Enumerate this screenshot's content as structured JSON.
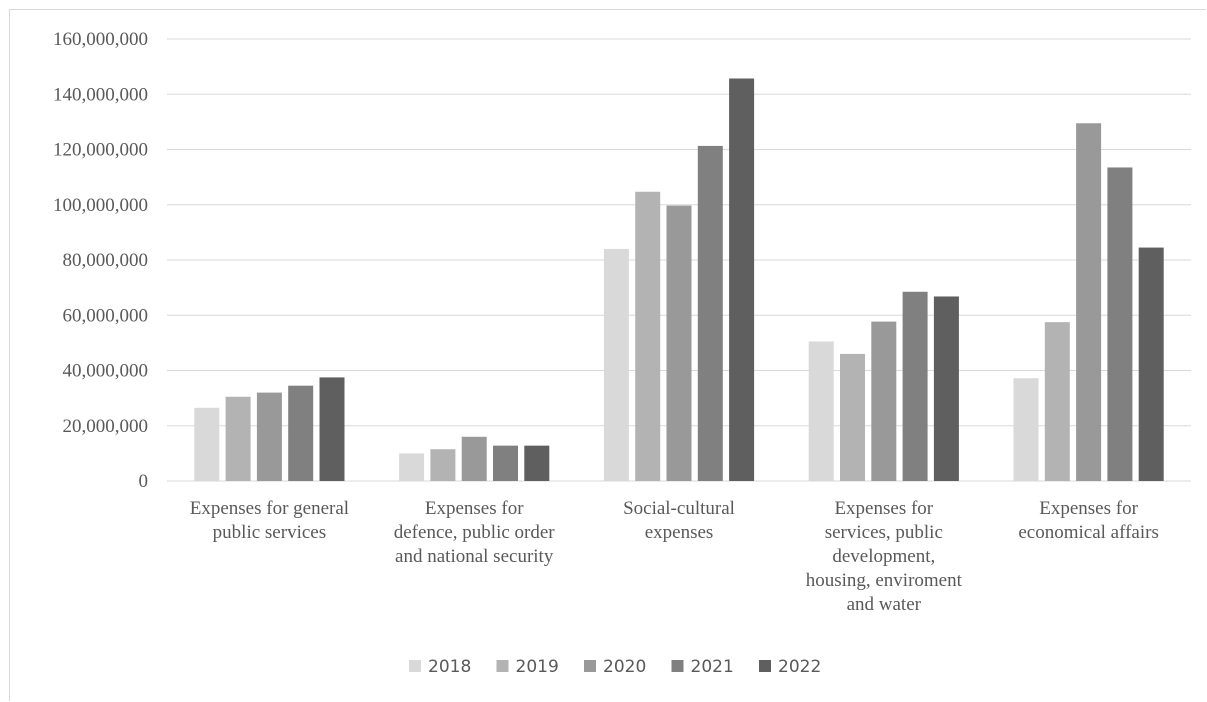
{
  "chart_data": {
    "type": "bar",
    "categories": [
      [
        "Expenses for general",
        "public services"
      ],
      [
        "Expenses for",
        "defence, public order",
        "and national security"
      ],
      [
        "Social-cultural",
        "expenses"
      ],
      [
        "Expenses for",
        "services, public",
        "development,",
        "housing, enviroment",
        "and water"
      ],
      [
        "Expenses for",
        "economical affairs"
      ]
    ],
    "series": [
      {
        "name": "2018",
        "color": "#d9d9d9",
        "values": [
          26500000,
          10000000,
          84000000,
          50500000,
          37200000
        ]
      },
      {
        "name": "2019",
        "color": "#b3b3b3",
        "values": [
          30500000,
          11500000,
          104700000,
          46000000,
          57500000
        ]
      },
      {
        "name": "2020",
        "color": "#999999",
        "values": [
          32000000,
          16000000,
          99700000,
          57700000,
          129500000
        ]
      },
      {
        "name": "2021",
        "color": "#808080",
        "values": [
          34500000,
          12800000,
          121300000,
          68500000,
          113500000
        ]
      },
      {
        "name": "2022",
        "color": "#5f5f5f",
        "values": [
          37500000,
          12800000,
          145700000,
          66800000,
          84500000
        ]
      }
    ],
    "ylim": [
      0,
      160000000
    ],
    "yticks": [
      0,
      20000000,
      40000000,
      60000000,
      80000000,
      100000000,
      120000000,
      140000000,
      160000000
    ],
    "ytick_labels": [
      "0",
      "20,000,000",
      "40,000,000",
      "60,000,000",
      "80,000,000",
      "100,000,000",
      "120,000,000",
      "140,000,000",
      "160,000,000"
    ],
    "grid": true,
    "legend_position": "bottom",
    "title": "",
    "xlabel": "",
    "ylabel": ""
  }
}
